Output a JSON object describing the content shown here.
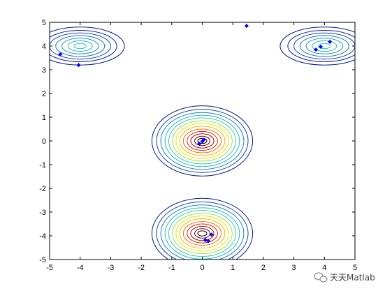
{
  "chart_data": {
    "type": "contour",
    "title": "",
    "xlabel": "",
    "ylabel": "",
    "xlim": [
      -5,
      5
    ],
    "ylim": [
      -5,
      5
    ],
    "xticks": [
      "-5",
      "-4",
      "-3",
      "-2",
      "-1",
      "0",
      "1",
      "2",
      "3",
      "4",
      "5"
    ],
    "yticks": [
      "-5",
      "-4",
      "-3",
      "-2",
      "-1",
      "0",
      "1",
      "2",
      "3",
      "4",
      "5"
    ],
    "grid": false,
    "contour_groups": [
      {
        "center": [
          -4,
          4
        ],
        "rings": [
          {
            "rx": 0.2,
            "ry": 0.11,
            "color": "#2ec9c4"
          },
          {
            "rx": 0.4,
            "ry": 0.22,
            "color": "#29b6c9"
          },
          {
            "rx": 0.6,
            "ry": 0.33,
            "color": "#2196c6"
          },
          {
            "rx": 0.8,
            "ry": 0.44,
            "color": "#1a6fc4"
          },
          {
            "rx": 1.0,
            "ry": 0.55,
            "color": "#1443c2"
          },
          {
            "rx": 1.2,
            "ry": 0.66,
            "color": "#0f22b0"
          },
          {
            "rx": 1.45,
            "ry": 0.8,
            "color": "#081a8e"
          }
        ]
      },
      {
        "center": [
          4,
          4
        ],
        "rings": [
          {
            "rx": 0.2,
            "ry": 0.11,
            "color": "#2ec9c4"
          },
          {
            "rx": 0.4,
            "ry": 0.22,
            "color": "#29b6c9"
          },
          {
            "rx": 0.6,
            "ry": 0.33,
            "color": "#2196c6"
          },
          {
            "rx": 0.8,
            "ry": 0.44,
            "color": "#1a6fc4"
          },
          {
            "rx": 1.0,
            "ry": 0.55,
            "color": "#1443c2"
          },
          {
            "rx": 1.2,
            "ry": 0.66,
            "color": "#0f22b0"
          },
          {
            "rx": 1.45,
            "ry": 0.8,
            "color": "#081a8e"
          }
        ]
      },
      {
        "center": [
          0,
          0
        ],
        "rings": [
          {
            "rx": 0.15,
            "ry": 0.11,
            "color": "#000000"
          },
          {
            "rx": 0.25,
            "ry": 0.2,
            "color": "#7f0000"
          },
          {
            "rx": 0.38,
            "ry": 0.3,
            "color": "#b00000"
          },
          {
            "rx": 0.5,
            "ry": 0.4,
            "color": "#e02000"
          },
          {
            "rx": 0.62,
            "ry": 0.5,
            "color": "#ff6a00"
          },
          {
            "rx": 0.74,
            "ry": 0.62,
            "color": "#ffb000"
          },
          {
            "rx": 0.86,
            "ry": 0.74,
            "color": "#e8e800"
          },
          {
            "rx": 0.98,
            "ry": 0.85,
            "color": "#9be04a"
          },
          {
            "rx": 1.1,
            "ry": 0.97,
            "color": "#3cd0a8"
          },
          {
            "rx": 1.22,
            "ry": 1.08,
            "color": "#29b6c9"
          },
          {
            "rx": 1.36,
            "ry": 1.2,
            "color": "#1a80c8"
          },
          {
            "rx": 1.5,
            "ry": 1.33,
            "color": "#1443c2"
          },
          {
            "rx": 1.65,
            "ry": 1.48,
            "color": "#081a8e"
          }
        ]
      },
      {
        "center": [
          0,
          -3.9
        ],
        "rings": [
          {
            "rx": 0.15,
            "ry": 0.11,
            "color": "#000000"
          },
          {
            "rx": 0.25,
            "ry": 0.2,
            "color": "#7f0000"
          },
          {
            "rx": 0.38,
            "ry": 0.3,
            "color": "#b00000"
          },
          {
            "rx": 0.5,
            "ry": 0.4,
            "color": "#e02000"
          },
          {
            "rx": 0.62,
            "ry": 0.5,
            "color": "#ff6a00"
          },
          {
            "rx": 0.74,
            "ry": 0.62,
            "color": "#ffb000"
          },
          {
            "rx": 0.86,
            "ry": 0.74,
            "color": "#e8e800"
          },
          {
            "rx": 0.98,
            "ry": 0.85,
            "color": "#9be04a"
          },
          {
            "rx": 1.1,
            "ry": 0.97,
            "color": "#3cd0a8"
          },
          {
            "rx": 1.22,
            "ry": 1.08,
            "color": "#29b6c9"
          },
          {
            "rx": 1.36,
            "ry": 1.2,
            "color": "#1a80c8"
          },
          {
            "rx": 1.5,
            "ry": 1.33,
            "color": "#1443c2"
          },
          {
            "rx": 1.65,
            "ry": 1.48,
            "color": "#081a8e"
          }
        ]
      }
    ],
    "points": {
      "color": "#0000ff",
      "marker": "diamond",
      "x": [
        -4.65,
        -4.05,
        1.45,
        3.72,
        3.88,
        4.18,
        -0.1,
        0.0,
        0.05,
        0.1,
        0.2,
        0.3
      ],
      "y": [
        3.65,
        3.2,
        4.85,
        3.85,
        3.97,
        4.18,
        -0.12,
        -0.02,
        0.05,
        -4.18,
        -4.22,
        -3.95
      ]
    }
  },
  "watermark": {
    "text": "天天Matlab",
    "icon": "wechat-bubble-icon"
  }
}
